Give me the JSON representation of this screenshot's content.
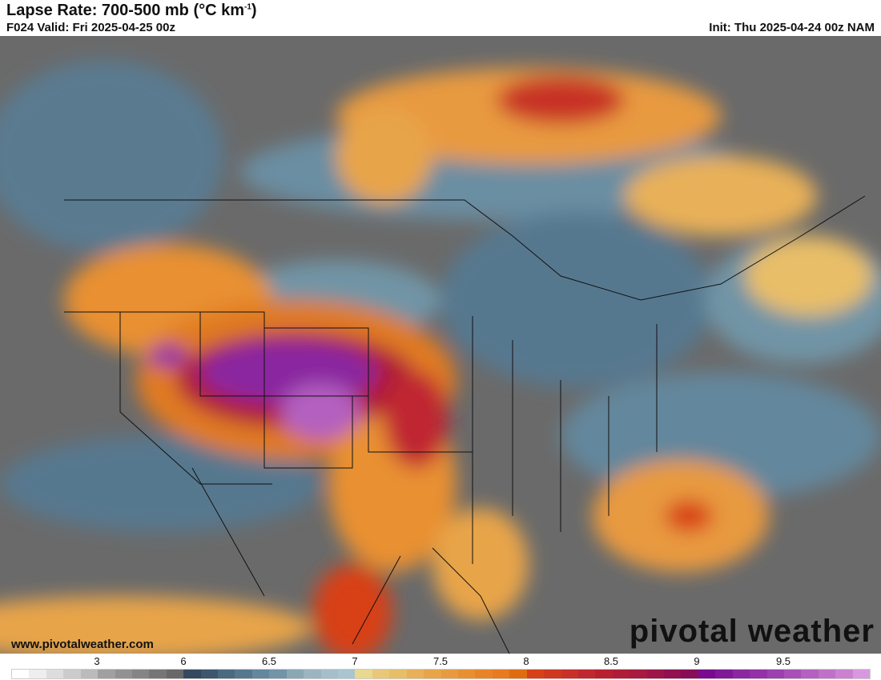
{
  "header": {
    "title": "Lapse Rate: 700-500 mb (°C km",
    "title_sup": "-1",
    "title_end": ")",
    "valid": "F024 Valid: Fri 2025-04-25 00z",
    "init": "Init: Thu 2025-04-24 00z NAM"
  },
  "footer": {
    "website": "www.pivotalweather.com",
    "logo": "pivotal weather"
  },
  "colorbar": {
    "labels": [
      "3",
      "6",
      "6.5",
      "7",
      "7.5",
      "8",
      "8.5",
      "9",
      "9.5"
    ],
    "colors": [
      "#ffffff",
      "#eeeeee",
      "#dddddd",
      "#cccccc",
      "#bbbbbb",
      "#a0a0a0",
      "#929292",
      "#858585",
      "#767676",
      "#686868",
      "#34495e",
      "#3e566e",
      "#4a6a80",
      "#56788f",
      "#63879c",
      "#7194a6",
      "#8aa7b4",
      "#9bb5c0",
      "#a4bfc9",
      "#a9c5cf",
      "#e8d890",
      "#e8c878",
      "#e8be68",
      "#e8b058",
      "#e8a448",
      "#e89a40",
      "#e89030",
      "#e88428",
      "#e87a20",
      "#e06c10",
      "#d84018",
      "#d03820",
      "#c83028",
      "#c02830",
      "#b82030",
      "#b01c38",
      "#a81840",
      "#9c1448",
      "#901050",
      "#880c58",
      "#7a0a90",
      "#801898",
      "#8a28a0",
      "#9430a8",
      "#9c40b0",
      "#a850b8",
      "#b460c0",
      "#c070c8",
      "#cc80d0",
      "#d898e0"
    ]
  }
}
